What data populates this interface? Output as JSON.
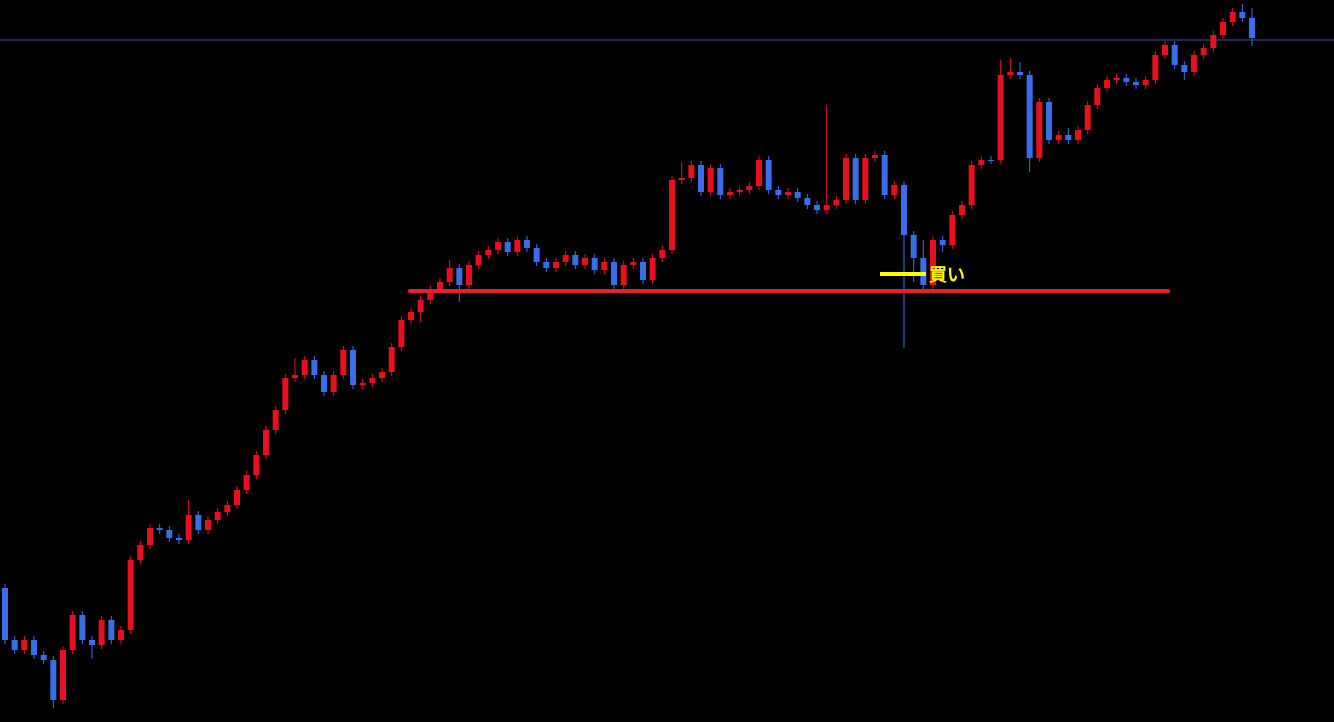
{
  "chart_data": {
    "type": "candlestick",
    "ylim": [
      0,
      722
    ],
    "up_color": "#e8101e",
    "down_color": "#3a6ee8",
    "open": [
      134,
      82,
      72,
      82,
      67,
      62,
      22,
      72,
      107,
      82,
      77,
      102,
      82,
      92,
      162,
      177,
      194,
      192,
      184,
      182,
      207,
      192,
      202,
      210,
      217,
      232,
      247,
      267,
      292,
      312,
      344,
      347,
      362,
      347,
      330,
      347,
      372,
      337,
      339,
      344,
      350,
      375,
      402,
      410,
      422,
      432,
      440,
      454,
      437,
      457,
      467,
      472,
      480,
      470,
      482,
      474,
      460,
      454,
      460,
      467,
      457,
      464,
      452,
      460,
      437,
      457,
      460,
      442,
      464,
      472,
      542,
      544,
      557,
      530,
      554,
      527,
      530,
      532,
      536,
      562,
      532,
      527,
      530,
      524,
      517,
      512,
      517,
      522,
      564,
      522,
      564,
      567,
      527,
      537,
      487,
      464,
      437,
      482,
      477,
      507,
      517,
      557,
      562,
      562,
      647,
      650,
      647,
      564,
      620,
      582,
      587,
      582,
      592,
      617,
      634,
      642,
      644,
      640,
      637,
      642,
      667,
      677,
      657,
      650,
      667,
      674,
      687,
      700,
      710,
      704
    ],
    "high": [
      138,
      86,
      86,
      86,
      71,
      66,
      76,
      111,
      111,
      86,
      106,
      106,
      96,
      166,
      181,
      198,
      198,
      196,
      188,
      222,
      211,
      206,
      214,
      221,
      236,
      251,
      271,
      296,
      316,
      348,
      364,
      366,
      366,
      351,
      351,
      376,
      376,
      343,
      348,
      354,
      379,
      406,
      414,
      426,
      436,
      444,
      462,
      458,
      461,
      471,
      476,
      484,
      484,
      486,
      486,
      478,
      464,
      464,
      471,
      471,
      468,
      468,
      464,
      464,
      461,
      464,
      464,
      468,
      476,
      546,
      560,
      561,
      561,
      558,
      558,
      534,
      536,
      540,
      566,
      566,
      536,
      534,
      534,
      528,
      521,
      617,
      526,
      568,
      568,
      568,
      571,
      571,
      541,
      541,
      491,
      482,
      486,
      486,
      511,
      521,
      561,
      566,
      566,
      662,
      664,
      660,
      651,
      624,
      624,
      591,
      594,
      596,
      621,
      638,
      646,
      648,
      648,
      644,
      646,
      671,
      681,
      681,
      661,
      671,
      678,
      691,
      704,
      714,
      718,
      714
    ],
    "low": [
      78,
      68,
      68,
      63,
      58,
      14,
      18,
      68,
      78,
      63,
      73,
      78,
      78,
      88,
      158,
      173,
      188,
      180,
      178,
      178,
      188,
      188,
      198,
      206,
      213,
      228,
      243,
      263,
      288,
      308,
      340,
      343,
      343,
      326,
      326,
      343,
      333,
      333,
      335,
      340,
      346,
      371,
      398,
      400,
      418,
      428,
      436,
      420,
      433,
      453,
      463,
      468,
      466,
      466,
      470,
      456,
      450,
      450,
      456,
      453,
      453,
      448,
      448,
      433,
      433,
      453,
      438,
      438,
      460,
      468,
      538,
      540,
      526,
      526,
      523,
      523,
      526,
      528,
      532,
      528,
      523,
      523,
      520,
      513,
      508,
      508,
      513,
      518,
      518,
      518,
      560,
      523,
      523,
      374,
      440,
      430,
      433,
      470,
      473,
      503,
      513,
      553,
      558,
      558,
      643,
      643,
      550,
      560,
      578,
      578,
      578,
      578,
      588,
      613,
      630,
      638,
      636,
      633,
      633,
      638,
      663,
      653,
      642,
      646,
      663,
      670,
      683,
      696,
      700,
      676
    ],
    "close": [
      82,
      72,
      82,
      67,
      62,
      22,
      72,
      107,
      82,
      77,
      102,
      82,
      92,
      162,
      177,
      194,
      192,
      184,
      182,
      207,
      192,
      202,
      210,
      217,
      232,
      247,
      267,
      292,
      312,
      344,
      347,
      362,
      347,
      330,
      347,
      372,
      337,
      339,
      344,
      350,
      375,
      402,
      410,
      422,
      432,
      440,
      454,
      437,
      457,
      467,
      472,
      480,
      470,
      482,
      474,
      460,
      454,
      460,
      467,
      457,
      464,
      452,
      460,
      437,
      457,
      460,
      442,
      464,
      472,
      542,
      544,
      557,
      530,
      554,
      527,
      530,
      532,
      536,
      562,
      532,
      527,
      530,
      524,
      517,
      512,
      517,
      522,
      564,
      522,
      564,
      567,
      527,
      537,
      487,
      464,
      437,
      482,
      477,
      507,
      517,
      557,
      562,
      562,
      647,
      650,
      647,
      564,
      620,
      582,
      587,
      582,
      592,
      617,
      634,
      642,
      644,
      640,
      637,
      642,
      667,
      677,
      657,
      650,
      667,
      674,
      687,
      700,
      710,
      704,
      684
    ],
    "price_line": {
      "value": 682,
      "color": "#3a4fa8"
    },
    "support_line": {
      "value": 431,
      "color": "#e8202a"
    },
    "annotation": {
      "text": "買い",
      "value": 448,
      "color": "#ffff00"
    }
  }
}
